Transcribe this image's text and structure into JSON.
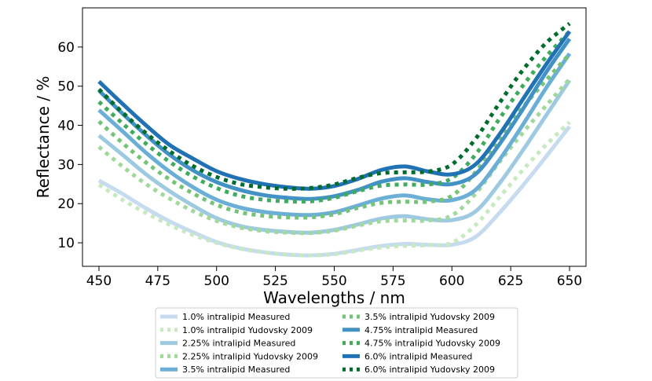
{
  "chart_data": {
    "type": "line",
    "title": "",
    "xlabel": "Wavelengths / nm",
    "ylabel": "Reflectance / %",
    "xlim": [
      443,
      657
    ],
    "ylim": [
      4,
      70
    ],
    "xticks": [
      450,
      475,
      500,
      525,
      550,
      575,
      600,
      625,
      650
    ],
    "yticks": [
      10,
      20,
      30,
      40,
      50,
      60
    ],
    "grid": false,
    "legend_position": "bottom-center",
    "x": [
      450,
      460,
      470,
      480,
      490,
      500,
      510,
      520,
      530,
      540,
      550,
      560,
      570,
      580,
      590,
      600,
      610,
      620,
      630,
      640,
      650
    ],
    "series": [
      {
        "name": "1.0% intralipid Measured",
        "style": "solid",
        "color": "#c6dbef",
        "values": [
          25.9,
          22.5,
          18.8,
          15.5,
          12.7,
          10.2,
          8.6,
          7.6,
          7.0,
          6.8,
          7.2,
          8.2,
          9.2,
          9.7,
          9.5,
          9.5,
          11.5,
          17.5,
          24.5,
          32.0,
          39.7
        ]
      },
      {
        "name": "1.0% intralipid Yudovsky 2009",
        "style": "dotted",
        "color": "#c7e9c0",
        "values": [
          24.8,
          21.0,
          17.6,
          14.6,
          12.0,
          10.0,
          8.5,
          7.6,
          7.0,
          6.8,
          7.1,
          8.0,
          8.8,
          9.2,
          9.4,
          10.0,
          14.5,
          21.5,
          28.5,
          35.0,
          40.8
        ]
      },
      {
        "name": "2.25% intralipid Measured",
        "style": "solid",
        "color": "#9ecae1",
        "values": [
          37.4,
          32.5,
          27.5,
          23.2,
          19.5,
          16.3,
          14.3,
          13.3,
          12.8,
          12.6,
          13.3,
          14.7,
          16.2,
          16.8,
          16.0,
          15.8,
          18.0,
          25.0,
          33.5,
          42.5,
          51.5
        ]
      },
      {
        "name": "2.25% intralipid Yudovsky 2009",
        "style": "dotted",
        "color": "#a1d99b",
        "values": [
          34.5,
          29.5,
          25.0,
          21.3,
          18.1,
          15.6,
          13.9,
          13.0,
          12.6,
          12.5,
          13.1,
          14.4,
          15.5,
          15.7,
          15.7,
          17.0,
          22.5,
          30.5,
          38.0,
          45.0,
          51.8
        ]
      },
      {
        "name": "3.5% intralipid Measured",
        "style": "solid",
        "color": "#6baed6",
        "values": [
          43.9,
          38.5,
          33.0,
          28.2,
          24.2,
          21.0,
          19.0,
          17.9,
          17.3,
          17.1,
          17.8,
          19.5,
          21.3,
          22.1,
          21.1,
          20.9,
          23.5,
          31.0,
          40.0,
          49.5,
          58.3
        ]
      },
      {
        "name": "3.5% intralipid Yudovsky 2009",
        "style": "dotted",
        "color": "#74c476",
        "values": [
          41.0,
          35.5,
          30.5,
          26.2,
          22.6,
          19.7,
          17.8,
          16.9,
          16.5,
          16.5,
          17.3,
          18.9,
          20.2,
          20.5,
          20.5,
          22.0,
          28.0,
          36.5,
          44.5,
          51.5,
          58.2
        ]
      },
      {
        "name": "4.75% intralipid Measured",
        "style": "solid",
        "color": "#4292c6",
        "values": [
          48.9,
          43.0,
          37.5,
          32.5,
          28.5,
          25.5,
          23.5,
          22.2,
          21.5,
          21.2,
          21.9,
          23.5,
          25.6,
          26.5,
          25.5,
          25.0,
          27.5,
          35.0,
          44.0,
          53.5,
          62.1
        ]
      },
      {
        "name": "4.75% intralipid Yudovsky 2009",
        "style": "dotted",
        "color": "#41ab5d",
        "values": [
          46.0,
          40.5,
          35.3,
          30.7,
          26.9,
          24.0,
          22.0,
          21.0,
          20.6,
          20.6,
          21.5,
          23.2,
          24.6,
          24.9,
          24.9,
          26.5,
          32.5,
          41.5,
          50.0,
          57.5,
          64.0
        ]
      },
      {
        "name": "6.0% intralipid Measured",
        "style": "solid",
        "color": "#2171b5",
        "values": [
          51.2,
          45.5,
          40.0,
          35.0,
          31.5,
          28.3,
          26.3,
          25.0,
          24.2,
          23.8,
          24.5,
          26.3,
          28.6,
          29.5,
          28.2,
          27.5,
          30.0,
          37.5,
          46.5,
          55.5,
          64.0
        ]
      },
      {
        "name": "6.0% intralipid Yudovsky 2009",
        "style": "dotted",
        "color": "#006d2c",
        "values": [
          49.2,
          43.3,
          38.0,
          33.4,
          29.6,
          26.8,
          25.0,
          24.2,
          23.8,
          24.0,
          24.9,
          26.6,
          27.8,
          28.0,
          28.2,
          30.0,
          36.5,
          45.5,
          54.0,
          61.0,
          66.0
        ]
      }
    ]
  }
}
